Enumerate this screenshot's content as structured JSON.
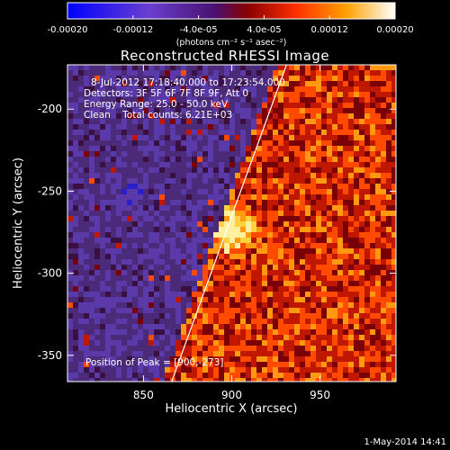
{
  "colorbar": {
    "tick_labels": [
      "-0.00020",
      "-0.00012",
      "-4.0e-05",
      "4.0e-05",
      "0.00012",
      "0.00020"
    ],
    "tick_values": [
      -0.0002,
      -0.00012,
      -4e-05,
      4e-05,
      0.00012,
      0.0002
    ],
    "range": [
      -0.0002,
      0.0002
    ],
    "units_label": "(photons cm⁻² s⁻¹ asec⁻²)",
    "colors": [
      "#0000ff",
      "#7a4bd0",
      "#5a1a5a",
      "#8a0000",
      "#ff4000",
      "#ffb000",
      "#ffffff"
    ]
  },
  "chart_data": {
    "type": "heatmap",
    "title": "Reconstructed RHESSI Image",
    "xlabel": "Heliocentric X (arcsec)",
    "ylabel": "Heliocentric Y (arcsec)",
    "xlim": [
      807,
      993
    ],
    "ylim": [
      -366,
      -173
    ],
    "x_ticks": [
      850,
      900,
      950
    ],
    "y_ticks": [
      -200,
      -250,
      -300,
      -350
    ],
    "limb_line": [
      [
        866,
        -366
      ],
      [
        931,
        -173
      ]
    ],
    "peak_position": [
      900,
      -273
    ]
  },
  "annotations": {
    "time_range": "8-Jul-2012 17:18:40.000 to 17:23:54.000",
    "detectors": "Detectors: 3F 5F 6F 7F 8F 9F, Att 0",
    "energy_range": "Energy Range: 25.0 - 50.0 keV",
    "clean": "Clean    Total counts: 6.21E+03",
    "peak": "Position of Peak = [900,-273]"
  },
  "footer": {
    "date": "1-May-2014 14:41"
  }
}
